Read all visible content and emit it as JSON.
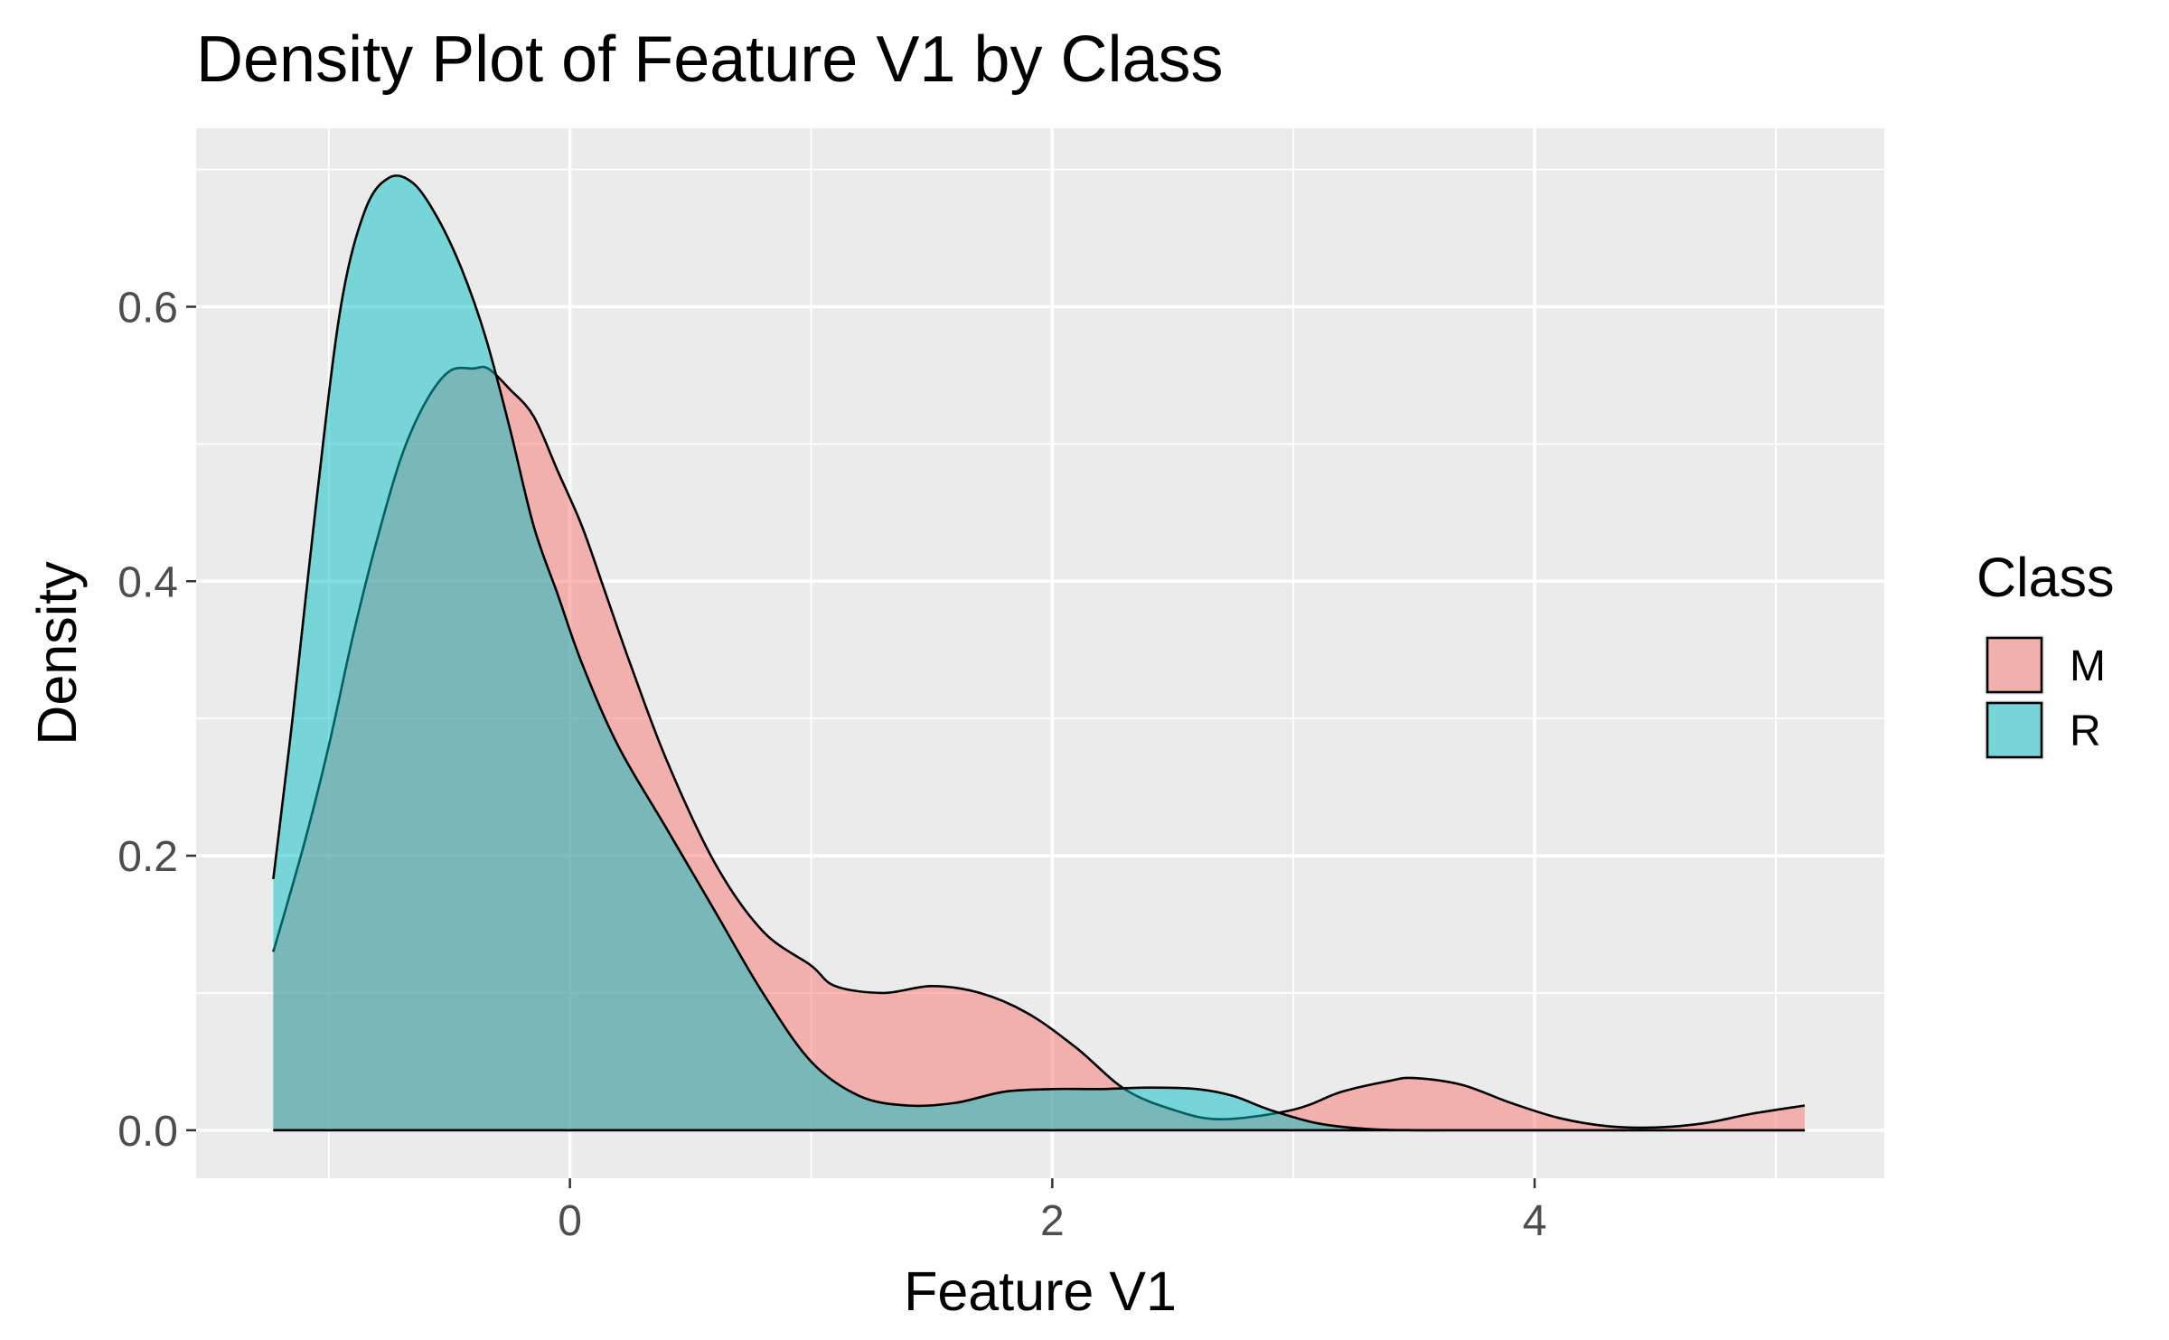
{
  "chart_data": {
    "type": "area",
    "subtype": "density",
    "title": "Density Plot of Feature V1 by Class",
    "xlabel": "Feature V1",
    "ylabel": "Density",
    "xlim": [
      -1.55,
      5.45
    ],
    "ylim": [
      -0.035,
      0.73
    ],
    "x_ticks": [
      0,
      2,
      4
    ],
    "x_tick_labels": [
      "0",
      "2",
      "4"
    ],
    "y_ticks": [
      0.0,
      0.2,
      0.4,
      0.6
    ],
    "y_tick_labels": [
      "0.0",
      "0.2",
      "0.4",
      "0.6"
    ],
    "grid": true,
    "panel_background": "#ebebeb",
    "legend": {
      "title": "Class",
      "position": "right"
    },
    "series": [
      {
        "name": "M",
        "color": "#F8766D",
        "fill_opacity": 0.5,
        "x": [
          -1.23,
          -1.1,
          -1.0,
          -0.9,
          -0.8,
          -0.7,
          -0.6,
          -0.5,
          -0.4,
          -0.34,
          -0.25,
          -0.15,
          -0.05,
          0.05,
          0.15,
          0.25,
          0.4,
          0.6,
          0.8,
          1.0,
          1.1,
          1.3,
          1.5,
          1.7,
          1.9,
          2.1,
          2.3,
          2.5,
          2.7,
          3.0,
          3.2,
          3.4,
          3.5,
          3.7,
          3.9,
          4.1,
          4.3,
          4.5,
          4.7,
          4.9,
          5.12
        ],
        "y": [
          0.13,
          0.21,
          0.28,
          0.36,
          0.43,
          0.49,
          0.53,
          0.553,
          0.555,
          0.555,
          0.54,
          0.52,
          0.48,
          0.44,
          0.39,
          0.34,
          0.27,
          0.195,
          0.145,
          0.12,
          0.105,
          0.1,
          0.105,
          0.1,
          0.085,
          0.06,
          0.03,
          0.015,
          0.008,
          0.015,
          0.028,
          0.036,
          0.038,
          0.033,
          0.02,
          0.009,
          0.003,
          0.002,
          0.005,
          0.012,
          0.018
        ]
      },
      {
        "name": "R",
        "color": "#00BFC4",
        "fill_opacity": 0.5,
        "x": [
          -1.23,
          -1.15,
          -1.05,
          -0.95,
          -0.85,
          -0.75,
          -0.65,
          -0.55,
          -0.45,
          -0.35,
          -0.25,
          -0.15,
          -0.05,
          0.05,
          0.2,
          0.4,
          0.6,
          0.8,
          1.0,
          1.2,
          1.4,
          1.6,
          1.8,
          2.0,
          2.2,
          2.4,
          2.6,
          2.75,
          2.9,
          3.1,
          3.3,
          3.5,
          3.7,
          3.9,
          4.2,
          4.5,
          4.8,
          5.12
        ],
        "y": [
          0.183,
          0.3,
          0.46,
          0.6,
          0.67,
          0.694,
          0.69,
          0.665,
          0.628,
          0.578,
          0.512,
          0.44,
          0.39,
          0.34,
          0.28,
          0.22,
          0.16,
          0.1,
          0.05,
          0.025,
          0.018,
          0.02,
          0.028,
          0.03,
          0.03,
          0.031,
          0.03,
          0.025,
          0.015,
          0.005,
          0.001,
          0.0,
          0.0,
          0.0,
          0.0,
          0.0,
          0.0,
          0.0
        ]
      }
    ]
  }
}
